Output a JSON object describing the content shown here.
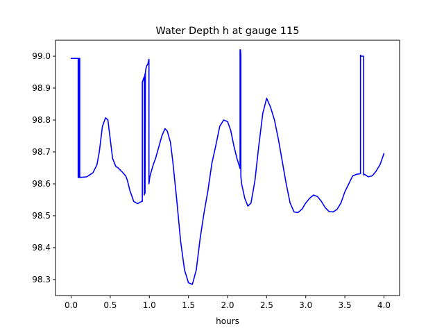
{
  "chart_data": {
    "type": "line",
    "title": "Water Depth h at gauge 115",
    "xlabel": "hours",
    "ylabel": "",
    "xlim": [
      -0.2,
      4.2
    ],
    "ylim": [
      98.25,
      99.05
    ],
    "xticks": [
      0.0,
      0.5,
      1.0,
      1.5,
      2.0,
      2.5,
      3.0,
      3.5,
      4.0
    ],
    "xtick_labels": [
      "0.0",
      "0.5",
      "1.0",
      "1.5",
      "2.0",
      "2.5",
      "3.0",
      "3.5",
      "4.0"
    ],
    "yticks": [
      98.3,
      98.4,
      98.5,
      98.6,
      98.7,
      98.8,
      98.9,
      99.0
    ],
    "ytick_labels": [
      "98.3",
      "98.4",
      "98.5",
      "98.6",
      "98.7",
      "98.8",
      "98.9",
      "99.0"
    ],
    "grid": false,
    "legend": "none",
    "series": [
      {
        "color": "#0000ff",
        "x": [
          0.0,
          0.08,
          0.085,
          0.09,
          0.09,
          0.1,
          0.1,
          0.11,
          0.11,
          0.2,
          0.28,
          0.33,
          0.36,
          0.4,
          0.44,
          0.47,
          0.5,
          0.53,
          0.57,
          0.6,
          0.65,
          0.7,
          0.72,
          0.75,
          0.8,
          0.85,
          0.9,
          0.91,
          0.91,
          0.925,
          0.935,
          0.935,
          0.94,
          0.945,
          0.945,
          0.95,
          0.955,
          0.97,
          0.98,
          0.99,
          0.995,
          0.995,
          1.0,
          1.005,
          1.005,
          1.02,
          1.05,
          1.08,
          1.12,
          1.16,
          1.2,
          1.23,
          1.27,
          1.3,
          1.35,
          1.4,
          1.45,
          1.5,
          1.55,
          1.6,
          1.65,
          1.7,
          1.75,
          1.8,
          1.85,
          1.9,
          1.95,
          2.0,
          2.04,
          2.08,
          2.12,
          2.16,
          2.16,
          2.165,
          2.17,
          2.17,
          2.18,
          2.22,
          2.26,
          2.3,
          2.35,
          2.4,
          2.45,
          2.5,
          2.55,
          2.6,
          2.65,
          2.7,
          2.75,
          2.8,
          2.85,
          2.9,
          2.95,
          3.0,
          3.05,
          3.1,
          3.15,
          3.2,
          3.25,
          3.3,
          3.35,
          3.4,
          3.45,
          3.5,
          3.55,
          3.6,
          3.65,
          3.7,
          3.7,
          3.71,
          3.74,
          3.74,
          3.75,
          3.8,
          3.85,
          3.9,
          3.95,
          4.0
        ],
        "y": [
          98.993,
          98.993,
          98.993,
          98.993,
          98.62,
          98.62,
          98.993,
          98.993,
          98.62,
          98.622,
          98.635,
          98.66,
          98.7,
          98.78,
          98.807,
          98.8,
          98.74,
          98.68,
          98.655,
          98.65,
          98.638,
          98.624,
          98.61,
          98.58,
          98.545,
          98.538,
          98.545,
          98.545,
          98.918,
          98.93,
          98.935,
          98.565,
          98.935,
          98.945,
          98.57,
          98.95,
          98.96,
          98.972,
          98.975,
          98.985,
          98.99,
          98.6,
          98.61,
          98.62,
          98.62,
          98.635,
          98.66,
          98.68,
          98.715,
          98.75,
          98.773,
          98.765,
          98.73,
          98.67,
          98.55,
          98.42,
          98.33,
          98.29,
          98.285,
          98.33,
          98.43,
          98.51,
          98.58,
          98.665,
          98.72,
          98.78,
          98.8,
          98.795,
          98.768,
          98.72,
          98.68,
          98.648,
          99.02,
          99.02,
          99.003,
          98.625,
          98.6,
          98.555,
          98.53,
          98.54,
          98.61,
          98.72,
          98.82,
          98.868,
          98.84,
          98.8,
          98.74,
          98.67,
          98.6,
          98.54,
          98.512,
          98.51,
          98.52,
          98.54,
          98.555,
          98.565,
          98.56,
          98.545,
          98.525,
          98.513,
          98.512,
          98.52,
          98.54,
          98.575,
          98.6,
          98.625,
          98.63,
          98.632,
          99.003,
          99.0,
          99.0,
          98.628,
          98.63,
          98.622,
          98.625,
          98.64,
          98.66,
          98.695
        ]
      }
    ]
  }
}
